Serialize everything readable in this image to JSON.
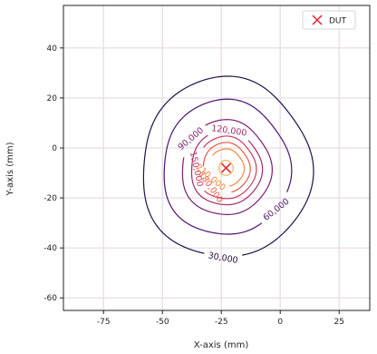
{
  "chart_data": {
    "type": "contour",
    "xlabel": "X-axis (mm)",
    "ylabel": "Y-axis (mm)",
    "xlim": [
      -92,
      38
    ],
    "ylim": [
      -65,
      57
    ],
    "xticks": [
      -75,
      -50,
      -25,
      0,
      25
    ],
    "yticks": [
      -60,
      -40,
      -20,
      0,
      20,
      40
    ],
    "xtick_labels": [
      "-75",
      "-50",
      "-25",
      "0",
      "25"
    ],
    "ytick_labels": [
      "-60",
      "-40",
      "-20",
      "0",
      "20",
      "40"
    ],
    "grid": true,
    "legend_position": "top-right",
    "marker": {
      "label": "DUT",
      "x": -23,
      "y": -8,
      "color": "#e4262d"
    },
    "levels": [
      {
        "value": 30000,
        "label": "30,000",
        "color": "#1e1147",
        "r": 36,
        "label_angle": 92,
        "label_rotation": 10
      },
      {
        "value": 60000,
        "label": "60,000",
        "color": "#4a1370",
        "r": 27,
        "label_angle": 38,
        "label_rotation": -38
      },
      {
        "value": 90000,
        "label": "90,000",
        "color": "#7c1d72",
        "r": 19,
        "label_angle": -142,
        "label_rotation": -40
      },
      {
        "value": 120000,
        "label": "120,000",
        "color": "#a12a6c",
        "r": 15,
        "label_angle": -85,
        "label_rotation": 8
      },
      {
        "value": 150000,
        "label": "150,000",
        "color": "#c63b5e",
        "r": 12.5,
        "label_angle": 178,
        "label_rotation": 78
      },
      {
        "value": 180000,
        "label": "180,000",
        "color": "#e55a44",
        "r": 10,
        "label_angle": 130,
        "label_rotation": 55
      },
      {
        "value": 210000,
        "label": "210,000",
        "color": "#f6853c",
        "r": 7.5,
        "label_angle": 150,
        "label_rotation": 40
      },
      {
        "value": 240000,
        "label": "",
        "color": "#f5b357",
        "r": 3,
        "label_angle": 0,
        "label_rotation": 0
      }
    ]
  }
}
